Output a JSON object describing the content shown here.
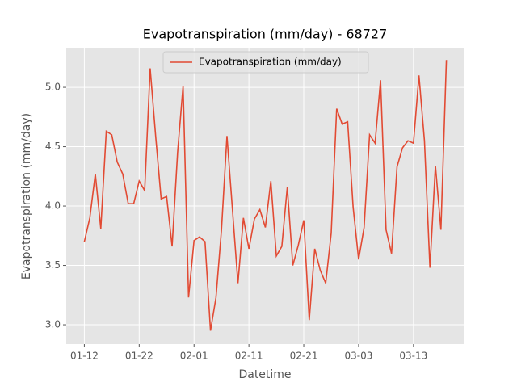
{
  "chart_data": {
    "type": "line",
    "title": "Evapotranspiration (mm/day) - 68727",
    "x_label": "Datetime",
    "y_label": "Evapotranspiration (mm/day)",
    "x": [
      "01-12",
      "01-13",
      "01-14",
      "01-15",
      "01-16",
      "01-17",
      "01-18",
      "01-19",
      "01-20",
      "01-21",
      "01-22",
      "01-23",
      "01-24",
      "01-25",
      "01-26",
      "01-27",
      "01-28",
      "01-29",
      "01-30",
      "01-31",
      "02-01",
      "02-02",
      "02-03",
      "02-04",
      "02-05",
      "02-06",
      "02-07",
      "02-08",
      "02-09",
      "02-10",
      "02-11",
      "02-12",
      "02-13",
      "02-14",
      "02-15",
      "02-16",
      "02-17",
      "02-18",
      "02-19",
      "02-20",
      "02-21",
      "02-22",
      "02-23",
      "02-24",
      "02-25",
      "02-26",
      "02-27",
      "02-28",
      "03-01",
      "03-02",
      "03-03",
      "03-04",
      "03-05",
      "03-06",
      "03-07",
      "03-08",
      "03-09",
      "03-10",
      "03-11",
      "03-12",
      "03-13",
      "03-14",
      "03-15",
      "03-16",
      "03-17",
      "03-18",
      "03-19"
    ],
    "series": [
      {
        "name": "Evapotranspiration (mm/day)",
        "color": "#e24a33",
        "values": [
          3.7,
          3.9,
          4.27,
          3.81,
          4.63,
          4.6,
          4.37,
          4.27,
          4.02,
          4.02,
          4.21,
          4.13,
          5.16,
          4.59,
          4.06,
          4.08,
          3.66,
          4.45,
          5.01,
          3.23,
          3.71,
          3.74,
          3.7,
          2.95,
          3.23,
          3.8,
          4.59,
          3.97,
          3.35,
          3.9,
          3.64,
          3.89,
          3.97,
          3.82,
          4.21,
          3.58,
          3.66,
          4.16,
          3.5,
          3.67,
          3.88,
          3.04,
          3.64,
          3.46,
          3.35,
          3.77,
          4.82,
          4.69,
          4.71,
          3.99,
          3.55,
          3.82,
          4.6,
          4.53,
          5.06,
          3.8,
          3.6,
          4.33,
          4.49,
          4.55,
          4.53,
          5.1,
          4.55,
          3.48,
          4.34,
          3.8,
          5.23
        ]
      }
    ],
    "xticks": [
      "01-12",
      "01-22",
      "02-01",
      "02-11",
      "02-21",
      "03-03",
      "03-13"
    ],
    "ylim": [
      2.837,
      5.327
    ],
    "yticks": [
      {
        "value": 3,
        "label": "3.0"
      },
      3.5,
      {
        "value": 4,
        "label": "4.0"
      },
      4.5,
      {
        "value": 5,
        "label": "5.0"
      }
    ],
    "grid": true,
    "legend": "upper center"
  }
}
